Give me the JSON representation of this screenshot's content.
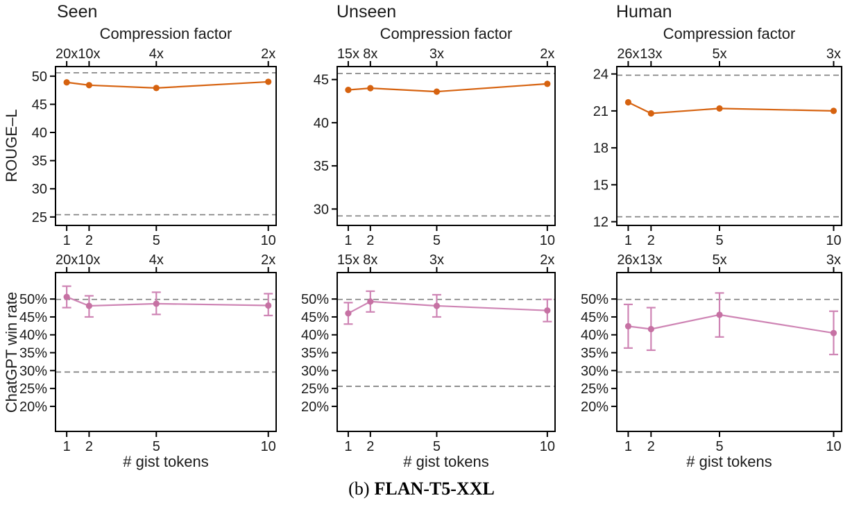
{
  "figure": {
    "column_titles": [
      "Seen",
      "Unseen",
      "Human"
    ],
    "top_axis_label": "Compression factor",
    "ylabel_top_row": "ROUGE–L",
    "ylabel_bottom_row": "ChatGPT win rate",
    "xlabel": "# gist tokens",
    "caption": {
      "index": "(b)",
      "model": "FLAN-T5-XXL"
    }
  },
  "colors": {
    "rouge_line": "#D6620F",
    "winrate_line": "#CE84B4",
    "winrate_marker": "#C671A3",
    "dashed_baseline": "#7F7F7F",
    "axis": "#000000"
  },
  "chart_data": [
    {
      "type": "line",
      "panel": "rouge-seen",
      "dataset": "Seen",
      "metric": "ROUGE–L",
      "x": [
        1,
        2,
        5,
        10
      ],
      "y": [
        48.9,
        48.4,
        47.9,
        49.0
      ],
      "top_tick_labels": [
        "20x",
        "10x",
        "4x",
        "2x"
      ],
      "xticks": [
        1,
        2,
        5,
        10
      ],
      "yticks": [
        25,
        30,
        35,
        40,
        45,
        50
      ],
      "ytick_suffix": "",
      "xlim": [
        0.5,
        10.35
      ],
      "ylim": [
        23.5,
        51.7
      ],
      "dashed_hlines": [
        50.6,
        25.4
      ],
      "line_color": "#D6620F",
      "marker_color": "#D6620F",
      "error_color": null,
      "grid": false
    },
    {
      "type": "line",
      "panel": "rouge-unseen",
      "dataset": "Unseen",
      "metric": "ROUGE–L",
      "x": [
        1,
        2,
        5,
        10
      ],
      "y": [
        43.8,
        44.0,
        43.6,
        44.5
      ],
      "top_tick_labels": [
        "15x",
        "8x",
        "3x",
        "2x"
      ],
      "xticks": [
        1,
        2,
        5,
        10
      ],
      "yticks": [
        30,
        35,
        40,
        45
      ],
      "ytick_suffix": "",
      "xlim": [
        0.5,
        10.35
      ],
      "ylim": [
        28.1,
        46.5
      ],
      "dashed_hlines": [
        45.7,
        29.2
      ],
      "line_color": "#D6620F",
      "marker_color": "#D6620F",
      "error_color": null,
      "grid": false
    },
    {
      "type": "line",
      "panel": "rouge-human",
      "dataset": "Human",
      "metric": "ROUGE–L",
      "x": [
        1,
        2,
        5,
        10
      ],
      "y": [
        21.7,
        20.8,
        21.2,
        21.0
      ],
      "top_tick_labels": [
        "26x",
        "13x",
        "5x",
        "3x"
      ],
      "xticks": [
        1,
        2,
        5,
        10
      ],
      "yticks": [
        12,
        15,
        18,
        21,
        24
      ],
      "ytick_suffix": "",
      "xlim": [
        0.5,
        10.35
      ],
      "ylim": [
        11.7,
        24.6
      ],
      "dashed_hlines": [
        23.9,
        12.4
      ],
      "line_color": "#D6620F",
      "marker_color": "#D6620F",
      "error_color": null,
      "grid": false
    },
    {
      "type": "line",
      "panel": "winrate-seen",
      "dataset": "Seen",
      "metric": "ChatGPT win rate",
      "x": [
        1,
        2,
        5,
        10
      ],
      "y": [
        50.6,
        48.1,
        48.7,
        48.2
      ],
      "yerr_low": [
        47.6,
        45.0,
        45.7,
        45.4
      ],
      "yerr_high": [
        53.6,
        50.9,
        51.9,
        51.5
      ],
      "top_tick_labels": [
        "20x",
        "10x",
        "4x",
        "2x"
      ],
      "xticks": [
        1,
        2,
        5,
        10
      ],
      "yticks": [
        20,
        25,
        30,
        35,
        40,
        45,
        50
      ],
      "ytick_suffix": "%",
      "xlim": [
        0.5,
        10.35
      ],
      "ylim": [
        13.0,
        57.4
      ],
      "dashed_hlines": [
        49.9,
        29.6
      ],
      "line_color": "#CE84B4",
      "marker_color": "#C671A3",
      "error_color": "#CE84B4",
      "grid": false
    },
    {
      "type": "line",
      "panel": "winrate-unseen",
      "dataset": "Unseen",
      "metric": "ChatGPT win rate",
      "x": [
        1,
        2,
        5,
        10
      ],
      "y": [
        46.0,
        49.3,
        48.1,
        46.8
      ],
      "yerr_low": [
        43.0,
        46.4,
        45.0,
        43.7
      ],
      "yerr_high": [
        49.0,
        52.2,
        51.2,
        49.9
      ],
      "top_tick_labels": [
        "15x",
        "8x",
        "3x",
        "2x"
      ],
      "xticks": [
        1,
        2,
        5,
        10
      ],
      "yticks": [
        20,
        25,
        30,
        35,
        40,
        45,
        50
      ],
      "ytick_suffix": "%",
      "xlim": [
        0.5,
        10.35
      ],
      "ylim": [
        13.0,
        57.4
      ],
      "dashed_hlines": [
        49.9,
        25.6
      ],
      "line_color": "#CE84B4",
      "marker_color": "#C671A3",
      "error_color": "#CE84B4",
      "grid": false
    },
    {
      "type": "line",
      "panel": "winrate-human",
      "dataset": "Human",
      "metric": "ChatGPT win rate",
      "x": [
        1,
        2,
        5,
        10
      ],
      "y": [
        42.4,
        41.6,
        45.6,
        40.5
      ],
      "yerr_low": [
        36.3,
        35.7,
        39.4,
        34.5
      ],
      "yerr_high": [
        48.5,
        47.6,
        51.7,
        46.6
      ],
      "top_tick_labels": [
        "26x",
        "13x",
        "5x",
        "3x"
      ],
      "xticks": [
        1,
        2,
        5,
        10
      ],
      "yticks": [
        20,
        25,
        30,
        35,
        40,
        45,
        50
      ],
      "ytick_suffix": "%",
      "xlim": [
        0.5,
        10.35
      ],
      "ylim": [
        13.0,
        57.4
      ],
      "dashed_hlines": [
        49.9,
        29.6
      ],
      "line_color": "#CE84B4",
      "marker_color": "#C671A3",
      "error_color": "#CE84B4",
      "grid": false
    }
  ]
}
